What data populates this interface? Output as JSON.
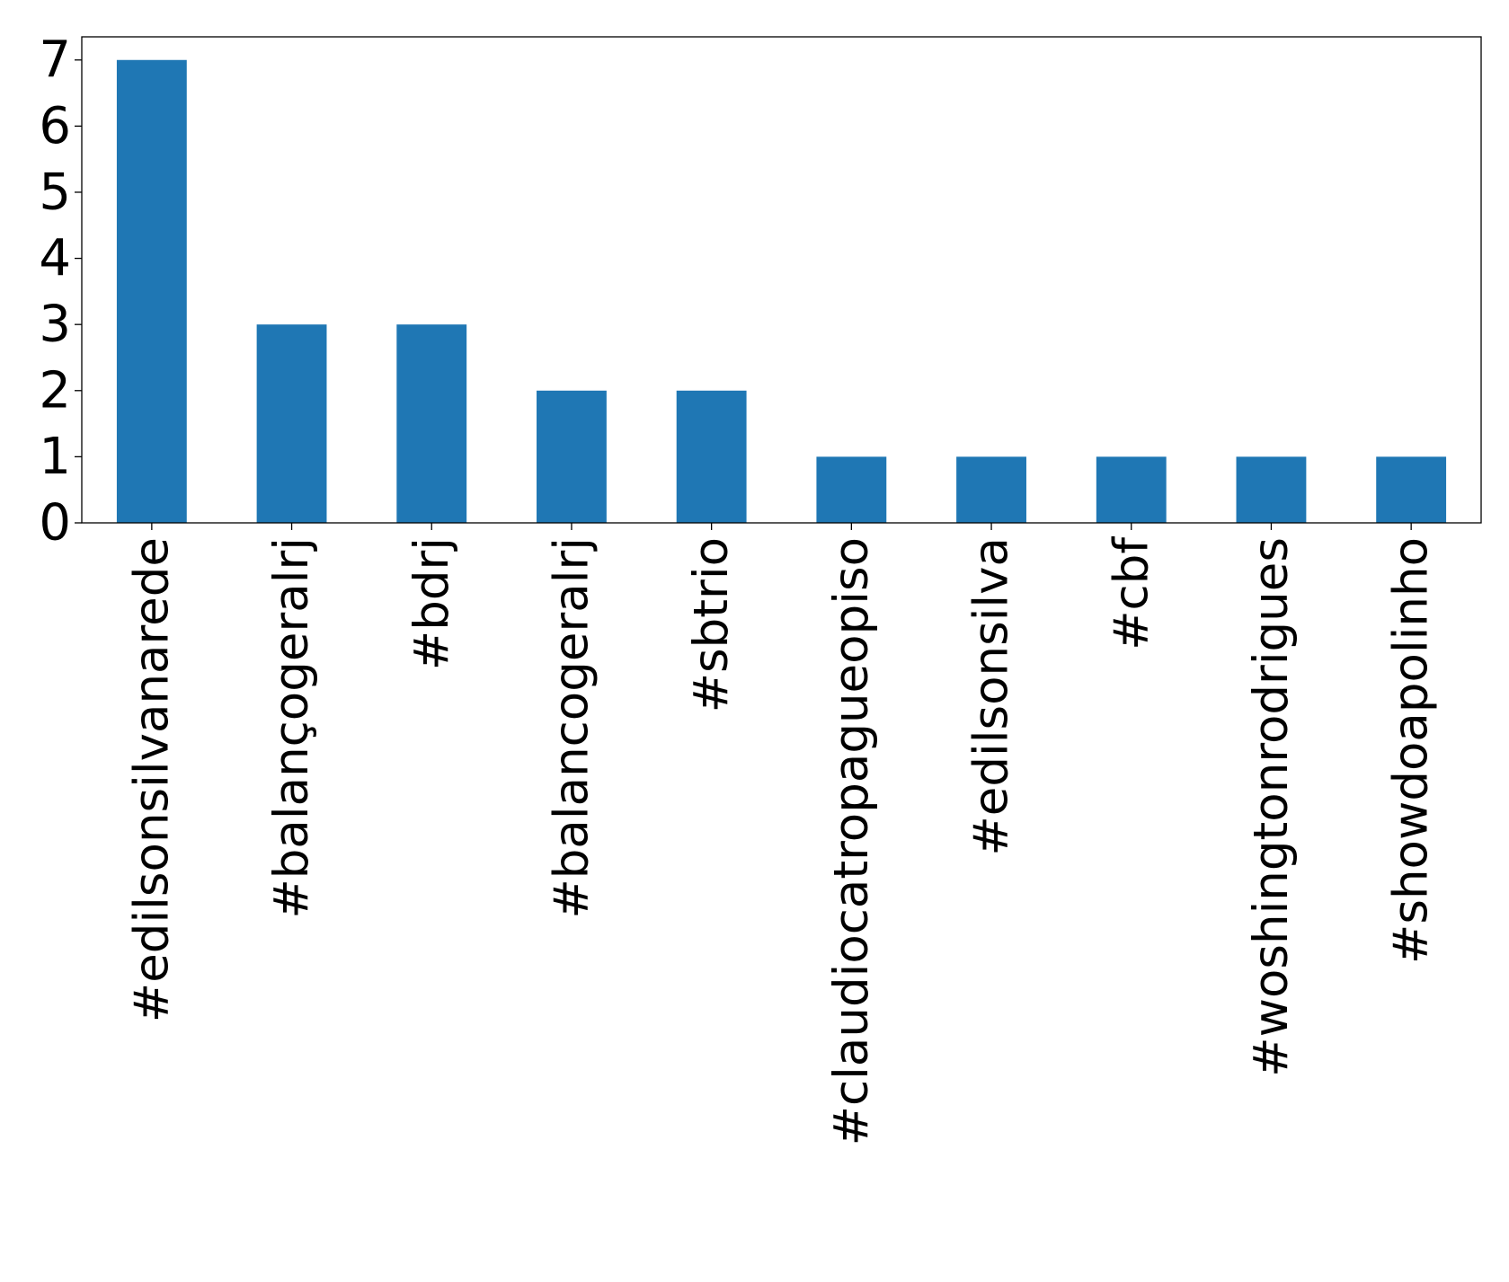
{
  "chart_data": {
    "type": "bar",
    "categories": [
      "#edilsonsilvanarede",
      "#balançogeralrj",
      "#bdrj",
      "#balancogeralrj",
      "#sbtrio",
      "#claudiocatropagueopiso",
      "#edilsonsilva",
      "#cbf",
      "#woshingtonrodrigues",
      "#showdoapolinho"
    ],
    "values": [
      7,
      3,
      3,
      2,
      2,
      1,
      1,
      1,
      1,
      1
    ],
    "ylim": [
      0,
      7.35
    ],
    "yticks": [
      "0",
      "1",
      "2",
      "3",
      "4",
      "5",
      "6",
      "7"
    ],
    "title": "",
    "xlabel": "",
    "ylabel": "",
    "grid": false,
    "bar_color": "#1f77b4"
  }
}
